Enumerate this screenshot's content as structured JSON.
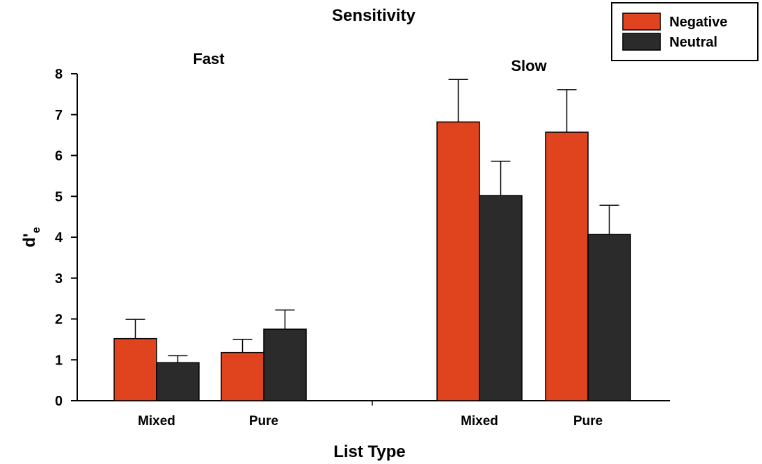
{
  "chart_data": {
    "type": "bar",
    "title": "Sensitivity",
    "xlabel": "List Type",
    "ylabel": "d'",
    "ylabel_subscript": "e",
    "ylim": [
      0,
      8
    ],
    "yticks": [
      0,
      1,
      2,
      3,
      4,
      5,
      6,
      7,
      8
    ],
    "grid": false,
    "legend_position": "top-right",
    "colors": {
      "Negative": "#e0441f",
      "Neutral": "#2b2b2b"
    },
    "groups": [
      {
        "label": "Fast",
        "categories": [
          "Mixed",
          "Pure"
        ],
        "series": [
          {
            "name": "Negative",
            "values": [
              1.52,
              1.18
            ],
            "errors": [
              0.47,
              0.32
            ]
          },
          {
            "name": "Neutral",
            "values": [
              0.93,
              1.75
            ],
            "errors": [
              0.17,
              0.47
            ]
          }
        ]
      },
      {
        "label": "Slow",
        "categories": [
          "Mixed",
          "Pure"
        ],
        "series": [
          {
            "name": "Negative",
            "values": [
              6.82,
              6.57
            ],
            "errors": [
              1.04,
              1.04
            ]
          },
          {
            "name": "Neutral",
            "values": [
              5.02,
              4.07
            ],
            "errors": [
              0.84,
              0.71
            ]
          }
        ]
      }
    ]
  }
}
